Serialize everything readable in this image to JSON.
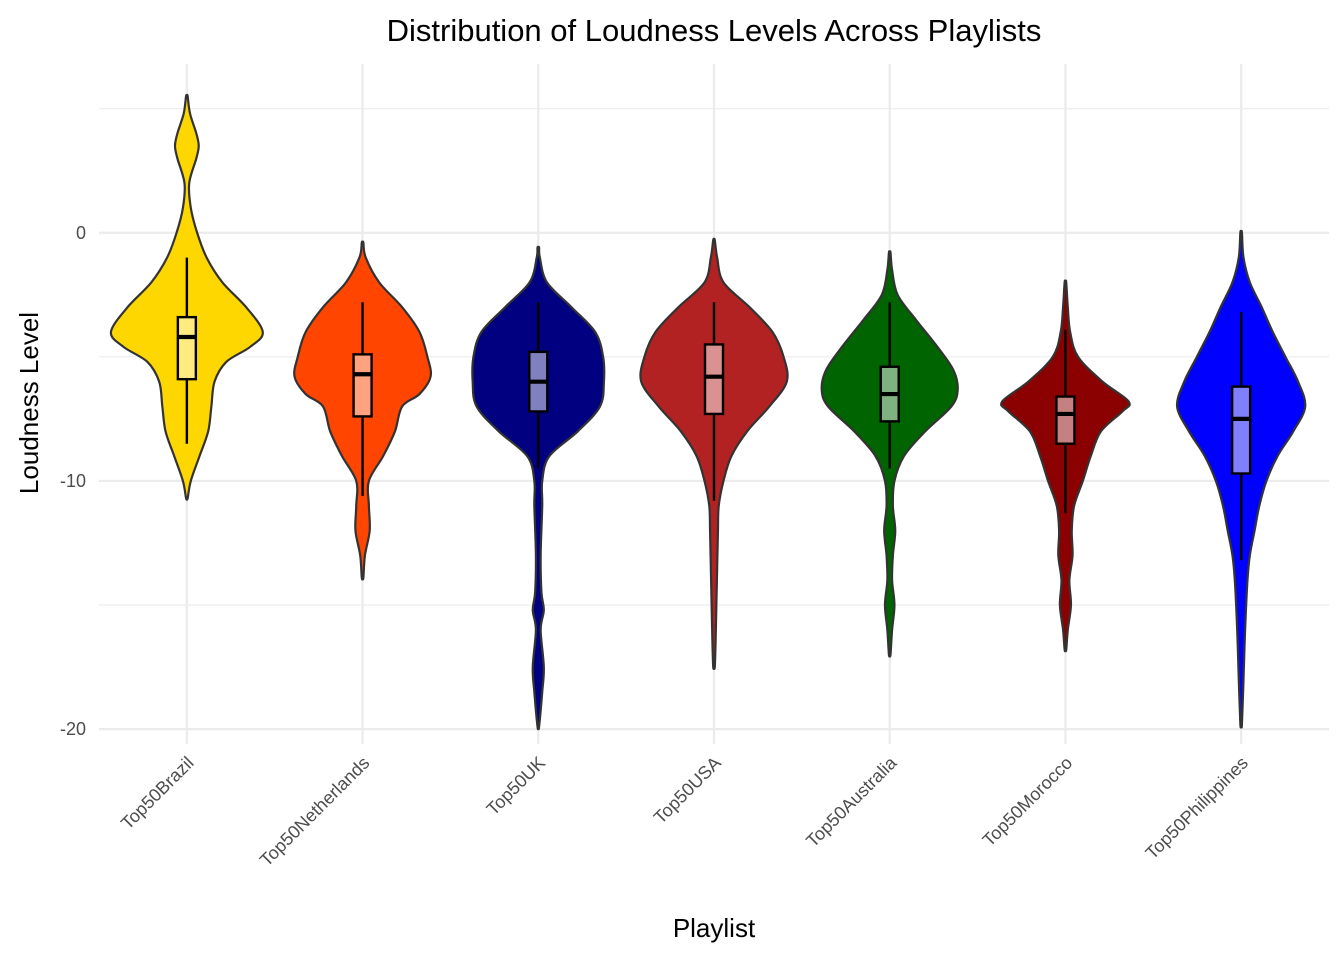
{
  "chart_data": {
    "type": "violin",
    "title": "Distribution of Loudness Levels Across Playlists",
    "xlabel": "Playlist",
    "ylabel": "Loudness Level",
    "ylim": [
      -20.6,
      6.8
    ],
    "yticks": [
      {
        "value": 0,
        "label": "0"
      },
      {
        "value": -10,
        "label": "-10"
      },
      {
        "value": -20,
        "label": "-20"
      }
    ],
    "y_minor_gridlines": [
      5,
      -5,
      -15
    ],
    "grid": true,
    "legend": "none",
    "series": [
      {
        "category": "Top50Brazil",
        "fill": "#ffd700",
        "box_fill": "#ffeb80",
        "box": {
          "q1": -5.9,
          "median": -4.2,
          "q3": -3.4,
          "whisker_low": -8.5,
          "whisker_high": -1.0
        },
        "density": [
          [
            5.5,
            0.01
          ],
          [
            4.8,
            0.04
          ],
          [
            4.0,
            0.12
          ],
          [
            3.5,
            0.15
          ],
          [
            3.0,
            0.12
          ],
          [
            2.0,
            0.03
          ],
          [
            1.0,
            0.05
          ],
          [
            0.0,
            0.13
          ],
          [
            -1.0,
            0.25
          ],
          [
            -2.0,
            0.45
          ],
          [
            -3.0,
            0.75
          ],
          [
            -4.0,
            0.96
          ],
          [
            -4.6,
            0.8
          ],
          [
            -5.2,
            0.5
          ],
          [
            -6.0,
            0.35
          ],
          [
            -7.0,
            0.31
          ],
          [
            -8.0,
            0.27
          ],
          [
            -9.0,
            0.16
          ],
          [
            -10.0,
            0.05
          ],
          [
            -10.7,
            0.01
          ]
        ]
      },
      {
        "category": "Top50Netherlands",
        "fill": "#ff4500",
        "box_fill": "#ffa280",
        "box": {
          "q1": -7.4,
          "median": -5.7,
          "q3": -4.9,
          "whisker_low": -10.6,
          "whisker_high": -2.8
        },
        "density": [
          [
            -0.4,
            0.01
          ],
          [
            -1.0,
            0.04
          ],
          [
            -2.0,
            0.21
          ],
          [
            -3.0,
            0.5
          ],
          [
            -4.0,
            0.72
          ],
          [
            -5.0,
            0.82
          ],
          [
            -5.8,
            0.86
          ],
          [
            -6.5,
            0.72
          ],
          [
            -7.0,
            0.5
          ],
          [
            -8.0,
            0.41
          ],
          [
            -9.0,
            0.26
          ],
          [
            -10.0,
            0.08
          ],
          [
            -11.0,
            0.08
          ],
          [
            -12.0,
            0.09
          ],
          [
            -13.0,
            0.03
          ],
          [
            -13.9,
            0.01
          ]
        ]
      },
      {
        "category": "Top50UK",
        "fill": "#000080",
        "box_fill": "#8080c0",
        "box": {
          "q1": -7.2,
          "median": -6.0,
          "q3": -4.8,
          "whisker_low": -9.5,
          "whisker_high": -2.8
        },
        "density": [
          [
            -0.6,
            0.01
          ],
          [
            -1.0,
            0.02
          ],
          [
            -2.0,
            0.11
          ],
          [
            -3.0,
            0.42
          ],
          [
            -4.0,
            0.72
          ],
          [
            -5.0,
            0.82
          ],
          [
            -6.0,
            0.83
          ],
          [
            -7.0,
            0.78
          ],
          [
            -8.0,
            0.5
          ],
          [
            -9.0,
            0.14
          ],
          [
            -10.0,
            0.05
          ],
          [
            -11.0,
            0.05
          ],
          [
            -13.0,
            0.03
          ],
          [
            -14.5,
            0.04
          ],
          [
            -15.2,
            0.07
          ],
          [
            -16.0,
            0.03
          ],
          [
            -17.5,
            0.07
          ],
          [
            -18.5,
            0.05
          ],
          [
            -19.9,
            0.01
          ]
        ]
      },
      {
        "category": "Top50USA",
        "fill": "#b22222",
        "box_fill": "#d99191",
        "box": {
          "q1": -7.3,
          "median": -5.8,
          "q3": -4.5,
          "whisker_low": -10.8,
          "whisker_high": -2.8
        },
        "density": [
          [
            -0.3,
            0.01
          ],
          [
            -1.0,
            0.04
          ],
          [
            -2.0,
            0.12
          ],
          [
            -3.0,
            0.45
          ],
          [
            -4.0,
            0.74
          ],
          [
            -5.0,
            0.88
          ],
          [
            -6.0,
            0.92
          ],
          [
            -7.0,
            0.7
          ],
          [
            -8.0,
            0.42
          ],
          [
            -9.0,
            0.22
          ],
          [
            -10.0,
            0.12
          ],
          [
            -11.0,
            0.06
          ],
          [
            -12.0,
            0.05
          ],
          [
            -13.5,
            0.04
          ],
          [
            -15.0,
            0.03
          ],
          [
            -16.5,
            0.02
          ],
          [
            -17.5,
            0.01
          ]
        ]
      },
      {
        "category": "Top50Australia",
        "fill": "#006400",
        "box_fill": "#80b280",
        "box": {
          "q1": -7.6,
          "median": -6.5,
          "q3": -5.4,
          "whisker_low": -9.5,
          "whisker_high": -2.8
        },
        "density": [
          [
            -0.8,
            0.01
          ],
          [
            -1.5,
            0.03
          ],
          [
            -2.5,
            0.1
          ],
          [
            -3.5,
            0.33
          ],
          [
            -4.5,
            0.58
          ],
          [
            -5.5,
            0.8
          ],
          [
            -6.3,
            0.86
          ],
          [
            -7.0,
            0.78
          ],
          [
            -8.0,
            0.45
          ],
          [
            -9.0,
            0.18
          ],
          [
            -10.0,
            0.06
          ],
          [
            -11.0,
            0.04
          ],
          [
            -12.0,
            0.07
          ],
          [
            -13.0,
            0.04
          ],
          [
            -14.0,
            0.03
          ],
          [
            -15.0,
            0.06
          ],
          [
            -16.0,
            0.03
          ],
          [
            -17.0,
            0.01
          ]
        ]
      },
      {
        "category": "Top50Morocco",
        "fill": "#8b0000",
        "box_fill": "#c58080",
        "box": {
          "q1": -8.5,
          "median": -7.3,
          "q3": -6.6,
          "whisker_low": -11.3,
          "whisker_high": -3.9
        },
        "density": [
          [
            -2.0,
            0.01
          ],
          [
            -3.0,
            0.03
          ],
          [
            -4.0,
            0.06
          ],
          [
            -5.0,
            0.16
          ],
          [
            -6.0,
            0.47
          ],
          [
            -6.8,
            0.8
          ],
          [
            -7.2,
            0.72
          ],
          [
            -8.0,
            0.45
          ],
          [
            -9.0,
            0.32
          ],
          [
            -10.0,
            0.22
          ],
          [
            -11.0,
            0.11
          ],
          [
            -12.0,
            0.08
          ],
          [
            -13.0,
            0.09
          ],
          [
            -14.0,
            0.05
          ],
          [
            -15.0,
            0.07
          ],
          [
            -16.0,
            0.03
          ],
          [
            -16.8,
            0.01
          ]
        ]
      },
      {
        "category": "Top50Philippines",
        "fill": "#0000ff",
        "box_fill": "#8080ff",
        "box": {
          "q1": -9.7,
          "median": -7.5,
          "q3": -6.2,
          "whisker_low": -13.2,
          "whisker_high": -3.2
        },
        "density": [
          [
            0.0,
            0.01
          ],
          [
            -1.0,
            0.03
          ],
          [
            -2.0,
            0.11
          ],
          [
            -3.0,
            0.26
          ],
          [
            -4.0,
            0.4
          ],
          [
            -5.0,
            0.56
          ],
          [
            -6.0,
            0.72
          ],
          [
            -7.0,
            0.81
          ],
          [
            -8.0,
            0.66
          ],
          [
            -9.0,
            0.46
          ],
          [
            -10.0,
            0.32
          ],
          [
            -11.0,
            0.23
          ],
          [
            -12.0,
            0.17
          ],
          [
            -13.0,
            0.11
          ],
          [
            -14.0,
            0.08
          ],
          [
            -16.0,
            0.05
          ],
          [
            -18.0,
            0.03
          ],
          [
            -19.8,
            0.01
          ]
        ]
      }
    ]
  }
}
